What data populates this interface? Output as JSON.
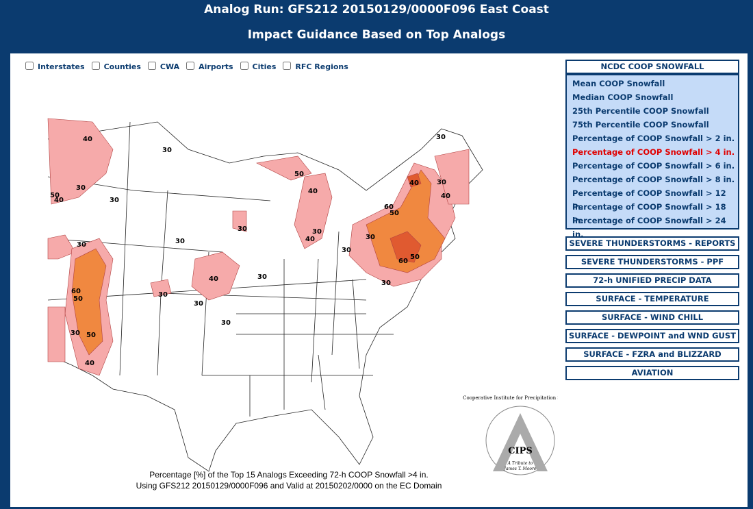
{
  "header": {
    "title": "Analog Run: GFS212 20150129/0000F096 East Coast",
    "subtitle": "Impact Guidance Based on Top Analogs"
  },
  "layers": [
    "Interstates",
    "Counties",
    "CWA",
    "Airports",
    "Cities",
    "RFC Regions"
  ],
  "map": {
    "contour_labels": [
      40,
      30,
      30,
      50,
      40,
      30,
      50,
      40,
      30,
      30,
      40,
      40,
      60,
      50,
      30,
      30,
      30,
      40,
      30,
      30,
      30,
      50,
      60,
      40,
      30,
      60,
      50,
      30,
      30,
      30,
      30,
      30,
      50,
      40
    ],
    "caption": [
      "Percentage [%] of the Top 15 Analogs Exceeding 72-h COOP Snowfall >4 in.",
      "Using GFS212 20150129/0000F096 and Valid at 20150202/0000 on the EC Domain"
    ],
    "logo": {
      "name": "CIPS",
      "institute": "Cooperative Institute for Precipitation Systems",
      "tribute": "A Tribute to",
      "person": "James T. Moore"
    }
  },
  "menu": {
    "heading": "NCDC COOP SNOWFALL",
    "selected": 5,
    "snowfall_items": [
      "Mean COOP Snowfall",
      "Median COOP Snowfall",
      "25th Percentile COOP Snowfall",
      "75th Percentile COOP Snowfall",
      "Percentage of COOP Snowfall > 2 in.",
      "Percentage of COOP Snowfall > 4 in.",
      "Percentage of COOP Snowfall > 6 in.",
      "Percentage of COOP Snowfall > 8 in.",
      "Percentage of COOP Snowfall > 12 in.",
      "Percentage of COOP Snowfall > 18 in.",
      "Percentage of COOP Snowfall > 24 in."
    ],
    "sections": [
      "SEVERE THUNDERSTORMS - REPORTS",
      "SEVERE THUNDERSTORMS - PPF",
      "72-h UNIFIED PRECIP DATA",
      "SURFACE - TEMPERATURE",
      "SURFACE - WIND CHILL",
      "SURFACE - DEWPOINT and WND GUST",
      "SURFACE - FZRA and BLIZZARD",
      "AVIATION"
    ]
  }
}
